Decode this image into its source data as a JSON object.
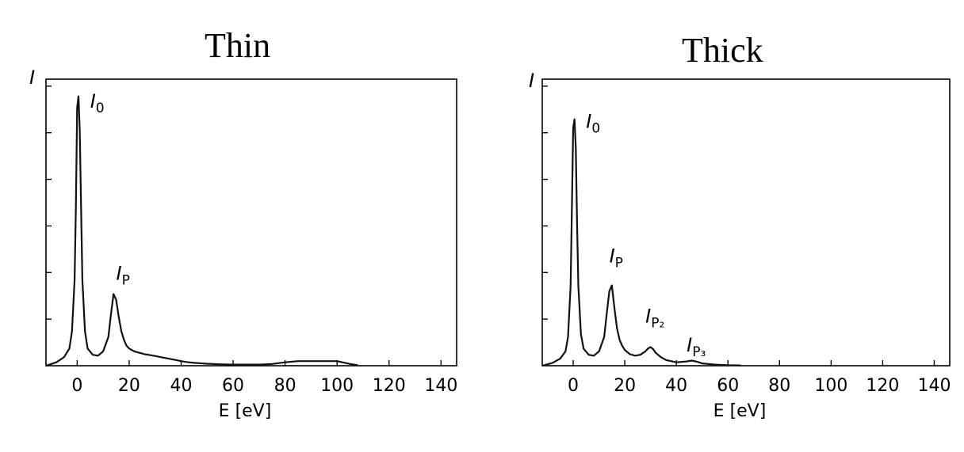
{
  "chart_data": [
    {
      "type": "line",
      "title": "Thin",
      "xlabel": "E [eV]",
      "ylabel": "I",
      "xlim": [
        -12,
        146
      ],
      "ylim": [
        0,
        1
      ],
      "grid": false,
      "xticks": [
        0,
        20,
        40,
        60,
        80,
        100,
        120,
        140
      ],
      "xtick_labels": [
        "0",
        "20",
        "40",
        "60",
        "80",
        "100",
        "120",
        "140"
      ],
      "series": [
        {
          "x": [
            -12,
            -8,
            -5,
            -3,
            -2,
            -1,
            -0.5,
            0,
            0.5,
            1,
            1.5,
            2,
            3,
            4,
            6,
            8,
            10,
            12,
            13,
            14,
            15,
            16,
            17,
            18,
            19,
            20,
            22,
            24,
            26,
            28,
            30,
            32,
            35,
            38,
            40,
            42,
            45,
            50,
            55,
            60,
            65,
            70,
            75,
            80,
            85,
            90,
            95,
            100,
            105,
            108
          ],
          "y": [
            0,
            0.012,
            0.03,
            0.06,
            0.12,
            0.3,
            0.55,
            0.9,
            0.94,
            0.82,
            0.55,
            0.3,
            0.12,
            0.06,
            0.038,
            0.035,
            0.05,
            0.1,
            0.18,
            0.25,
            0.23,
            0.17,
            0.12,
            0.09,
            0.07,
            0.06,
            0.05,
            0.045,
            0.04,
            0.037,
            0.034,
            0.03,
            0.025,
            0.02,
            0.016,
            0.013,
            0.01,
            0.007,
            0.005,
            0.004,
            0.004,
            0.004,
            0.006,
            0.012,
            0.016,
            0.016,
            0.016,
            0.016,
            0.006,
            0.002
          ]
        }
      ],
      "annotations": [
        {
          "base": "I",
          "sub": "0",
          "x": 5,
          "y": 0.9
        },
        {
          "base": "I",
          "sub": "P",
          "x": 15,
          "y": 0.3
        }
      ]
    },
    {
      "type": "line",
      "title": "Thick",
      "xlabel": "E [eV]",
      "ylabel": "I",
      "xlim": [
        -12,
        146
      ],
      "ylim": [
        0,
        1
      ],
      "grid": false,
      "xticks": [
        0,
        20,
        40,
        60,
        80,
        100,
        120,
        140
      ],
      "xtick_labels": [
        "0",
        "20",
        "40",
        "60",
        "80",
        "100",
        "120",
        "140"
      ],
      "series": [
        {
          "x": [
            -12,
            -8,
            -5,
            -3,
            -2,
            -1,
            -0.5,
            0,
            0.5,
            1,
            1.5,
            2,
            3,
            4,
            6,
            8,
            10,
            12,
            13,
            14,
            15,
            16,
            17,
            18,
            19,
            20,
            22,
            24,
            26,
            28,
            29,
            30,
            31,
            32,
            34,
            36,
            40,
            44,
            46,
            48,
            50,
            55,
            60,
            65
          ],
          "y": [
            0,
            0.01,
            0.025,
            0.05,
            0.1,
            0.28,
            0.55,
            0.83,
            0.86,
            0.76,
            0.5,
            0.28,
            0.11,
            0.06,
            0.038,
            0.035,
            0.05,
            0.1,
            0.18,
            0.26,
            0.28,
            0.2,
            0.13,
            0.09,
            0.07,
            0.055,
            0.04,
            0.035,
            0.038,
            0.05,
            0.06,
            0.065,
            0.058,
            0.045,
            0.03,
            0.02,
            0.012,
            0.015,
            0.018,
            0.014,
            0.008,
            0.004,
            0.002,
            0.001
          ]
        }
      ],
      "annotations": [
        {
          "base": "I",
          "sub": "0",
          "x": 5,
          "y": 0.83
        },
        {
          "base": "I",
          "sub": "P",
          "x": 14,
          "y": 0.36
        },
        {
          "base": "I",
          "sub": "P₂",
          "x": 28,
          "y": 0.15
        },
        {
          "base": "I",
          "sub": "P₃",
          "x": 44,
          "y": 0.05
        }
      ]
    }
  ]
}
